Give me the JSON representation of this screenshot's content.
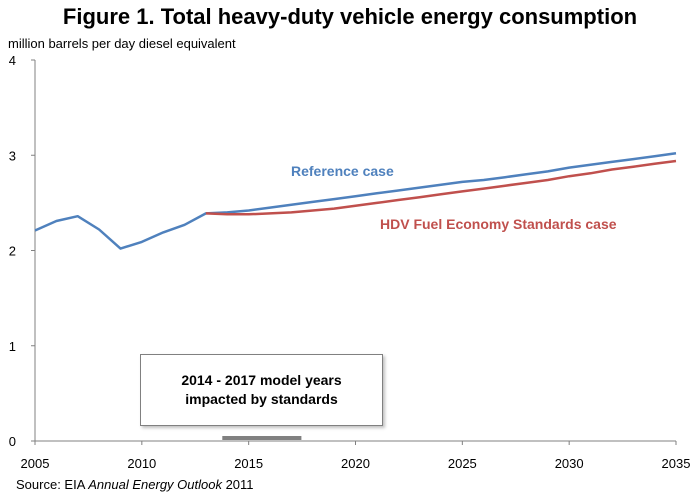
{
  "title": "Figure 1. Total heavy-duty vehicle energy consumption",
  "ylabel": "million barrels per day diesel equivalent",
  "source": {
    "prefix": "Source:  EIA ",
    "publication": "Annual Energy Outlook",
    "suffix": " 2011"
  },
  "annotation": {
    "line1": "2014 - 2017 model years",
    "line2": "impacted by standards",
    "bar_color": "#808080"
  },
  "chart_data": {
    "type": "line",
    "title": "Figure 1. Total heavy-duty vehicle energy consumption",
    "xlabel": "",
    "ylabel": "million barrels per day diesel equivalent",
    "xlim": [
      2005,
      2035
    ],
    "ylim": [
      0,
      4
    ],
    "x_ticks": [
      2005,
      2010,
      2015,
      2020,
      2025,
      2030,
      2035
    ],
    "y_ticks": [
      0,
      1,
      2,
      3,
      4
    ],
    "grid": false,
    "highlight_range": [
      2014,
      2017
    ],
    "series": [
      {
        "name": "Reference case",
        "color": "#4F81BD",
        "x": [
          2005,
          2006,
          2007,
          2008,
          2009,
          2010,
          2011,
          2012,
          2013,
          2014,
          2015,
          2016,
          2017,
          2018,
          2019,
          2020,
          2021,
          2022,
          2023,
          2024,
          2025,
          2026,
          2027,
          2028,
          2029,
          2030,
          2031,
          2032,
          2033,
          2034,
          2035
        ],
        "values": [
          2.21,
          2.31,
          2.36,
          2.22,
          2.02,
          2.09,
          2.19,
          2.27,
          2.39,
          2.4,
          2.42,
          2.45,
          2.48,
          2.51,
          2.54,
          2.57,
          2.6,
          2.63,
          2.66,
          2.69,
          2.72,
          2.74,
          2.77,
          2.8,
          2.83,
          2.87,
          2.9,
          2.93,
          2.96,
          2.99,
          3.02
        ]
      },
      {
        "name": "HDV Fuel Economy Standards case",
        "color": "#C0504D",
        "x": [
          2013,
          2014,
          2015,
          2016,
          2017,
          2018,
          2019,
          2020,
          2021,
          2022,
          2023,
          2024,
          2025,
          2026,
          2027,
          2028,
          2029,
          2030,
          2031,
          2032,
          2033,
          2034,
          2035
        ],
        "values": [
          2.39,
          2.38,
          2.38,
          2.39,
          2.4,
          2.42,
          2.44,
          2.47,
          2.5,
          2.53,
          2.56,
          2.59,
          2.62,
          2.65,
          2.68,
          2.71,
          2.74,
          2.78,
          2.81,
          2.85,
          2.88,
          2.91,
          2.94
        ]
      }
    ]
  }
}
